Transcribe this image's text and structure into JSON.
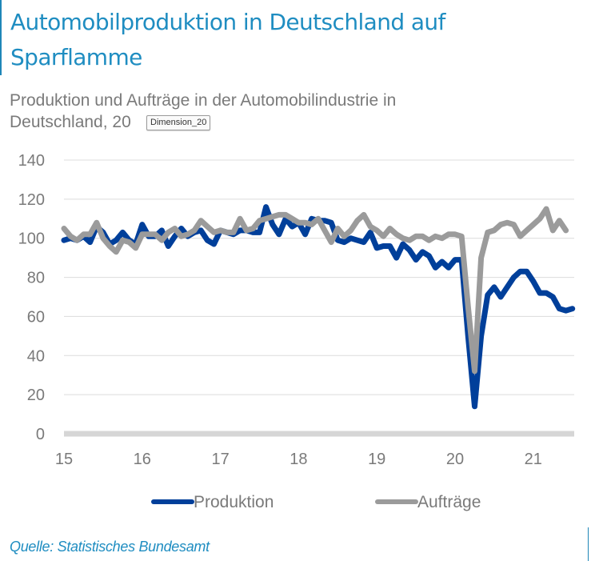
{
  "header": {
    "title": "Automobilproduktion in Deutschland auf Sparflamme",
    "subtitle": "Produktion und Aufträge in der Automobilindustrie in Deutschland, 20",
    "tooltip": "Dimension_20"
  },
  "footer": {
    "source": "Quelle: Statistisches Bundesamt"
  },
  "colors": {
    "title": "#1f8dc1",
    "produktion": "#003f9a",
    "auftraege": "#9b9b9b",
    "grid": "#dcdcdc",
    "baseline": "#d6d6d6",
    "text": "#7a7a7a"
  },
  "chart_data": {
    "type": "line",
    "title": "Produktion und Aufträge in der Automobilindustrie in Deutschland",
    "xlabel": "",
    "ylabel": "",
    "x_start": "2015-01",
    "frequency": "monthly",
    "xticks": [
      "15",
      "16",
      "17",
      "18",
      "19",
      "20",
      "21"
    ],
    "yticks": [
      0,
      20,
      40,
      60,
      80,
      100,
      120,
      140
    ],
    "ylim": [
      0,
      140
    ],
    "grid": true,
    "legend": "bottom",
    "series": [
      {
        "name": "Produktion",
        "key": "produktion",
        "values": [
          99,
          100,
          99,
          101,
          98,
          106,
          103,
          97,
          99,
          103,
          99,
          97,
          107,
          101,
          101,
          104,
          96,
          101,
          105,
          101,
          103,
          104,
          99,
          97,
          104,
          103,
          102,
          104,
          104,
          103,
          103,
          116,
          107,
          102,
          110,
          106,
          108,
          102,
          110,
          109,
          109,
          108,
          99,
          98,
          100,
          99,
          98,
          103,
          95,
          96,
          96,
          90,
          97,
          94,
          89,
          93,
          91,
          85,
          88,
          85,
          89,
          89,
          50,
          14,
          50,
          71,
          75,
          70,
          75,
          80,
          83,
          83,
          78,
          72,
          72,
          70,
          64,
          63,
          64
        ]
      },
      {
        "name": "Aufträge",
        "key": "auftraege",
        "values": [
          105,
          101,
          99,
          102,
          102,
          108,
          100,
          96,
          93,
          99,
          98,
          95,
          102,
          102,
          102,
          99,
          103,
          105,
          101,
          102,
          104,
          109,
          106,
          103,
          104,
          103,
          103,
          110,
          104,
          105,
          109,
          110,
          111,
          112,
          112,
          110,
          108,
          108,
          107,
          110,
          104,
          98,
          105,
          101,
          104,
          109,
          112,
          106,
          104,
          101,
          105,
          102,
          100,
          99,
          101,
          101,
          99,
          101,
          100,
          102,
          102,
          101,
          65,
          32,
          90,
          103,
          104,
          107,
          108,
          107,
          101,
          104,
          107,
          110,
          115,
          104,
          109,
          104
        ]
      }
    ]
  },
  "legend": {
    "items": [
      {
        "label": "Produktion",
        "key": "produktion"
      },
      {
        "label": "Aufträge",
        "key": "auftraege"
      }
    ]
  }
}
